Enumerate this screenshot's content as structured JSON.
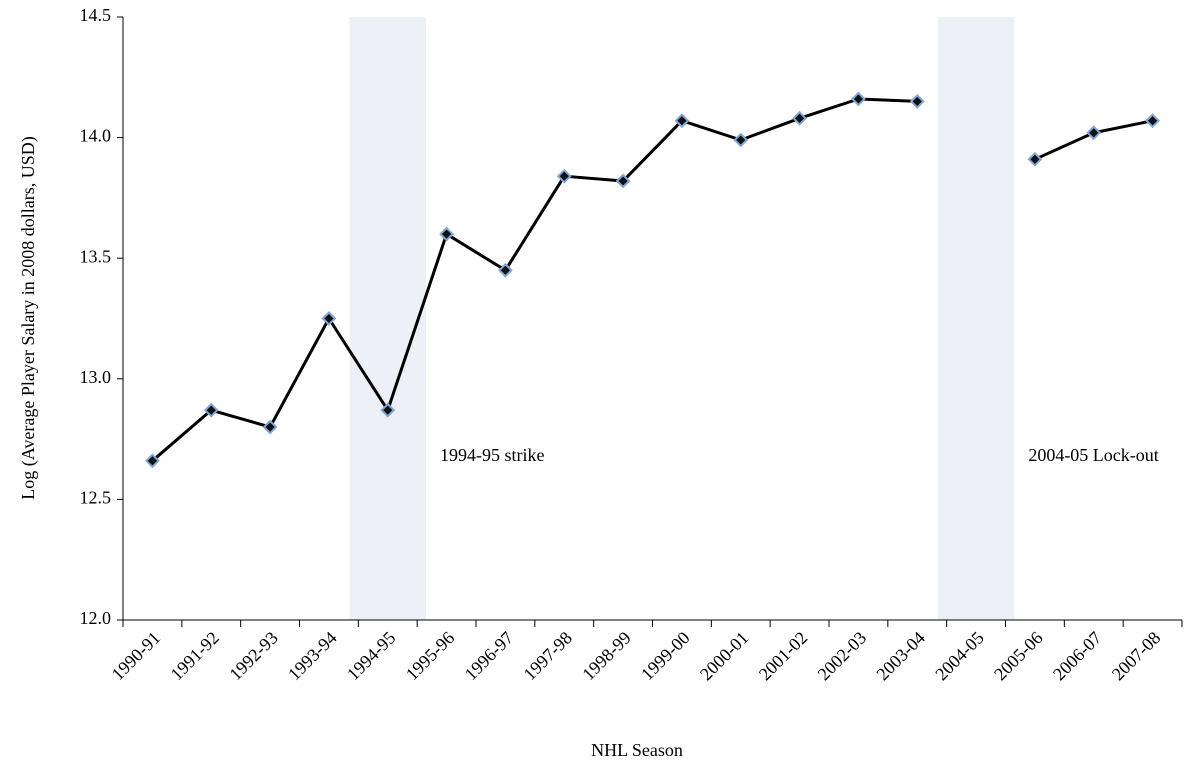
{
  "chart_data": {
    "type": "line",
    "x_label": "NHL Season",
    "y_label": "Log (Average Player Salary in 2008 dollars, USD)",
    "categories": [
      "1990-91",
      "1991-92",
      "1992-93",
      "1993-94",
      "1994-95",
      "1995-96",
      "1996-97",
      "1997-98",
      "1998-99",
      "1999-00",
      "2000-01",
      "2001-02",
      "2002-03",
      "2003-04",
      "2004-05",
      "2005-06",
      "2006-07",
      "2007-08"
    ],
    "series": [
      {
        "color": "#000000",
        "marker_color": "#7fa6d6",
        "values": [
          12.66,
          12.87,
          12.8,
          13.25,
          12.87,
          13.6,
          13.45,
          13.84,
          13.82,
          14.07,
          13.99,
          14.08,
          14.16,
          14.15,
          null,
          13.91,
          14.02,
          14.07
        ]
      }
    ],
    "ylim": [
      12,
      14.5
    ],
    "yticks": [
      {
        "value": 12,
        "label": "12.0"
      },
      {
        "value": 12.5,
        "label": "12.5"
      },
      {
        "value": 13,
        "label": "13.0"
      },
      {
        "value": 13.5,
        "label": "13.5"
      },
      {
        "value": 14,
        "label": "14.0"
      },
      {
        "value": 14.5,
        "label": "14.5"
      }
    ],
    "shade_color": "#edf1f7",
    "annotations": [
      {
        "text": "1994-95 strike",
        "category": "1994-95"
      },
      {
        "text": "2004-05 Lock-out",
        "category": "2004-05"
      }
    ]
  }
}
